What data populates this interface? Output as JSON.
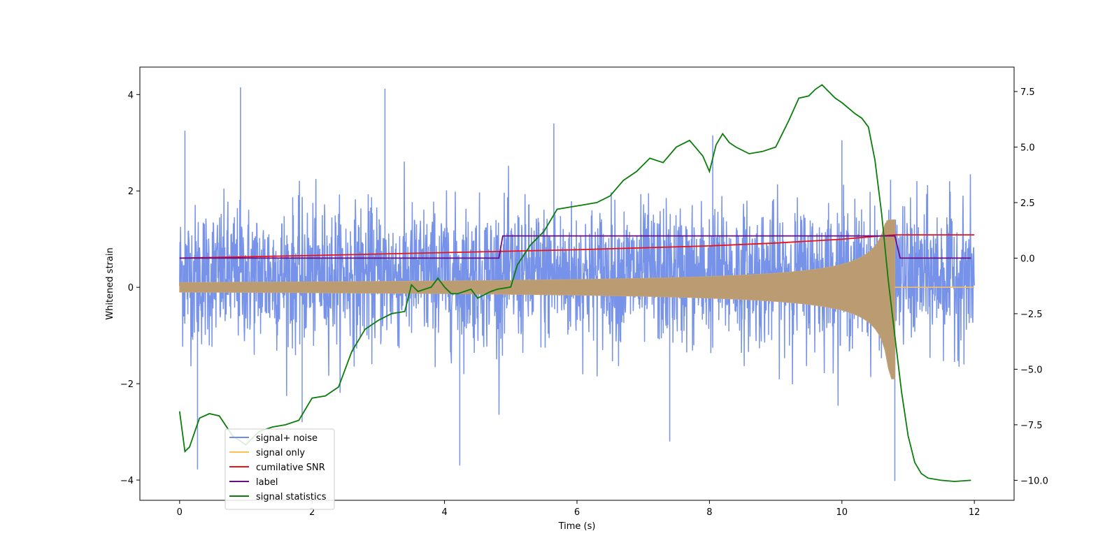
{
  "chart_data": {
    "type": "line",
    "title": "",
    "xlabel": "Time (s)",
    "ylabel": "Whitened strain",
    "y2label": "",
    "xlim": [
      -0.6,
      12.6
    ],
    "ylim": [
      -4.42,
      4.57
    ],
    "y2lim": [
      -10.9,
      8.6
    ],
    "x_ticks": [
      0,
      2,
      4,
      6,
      8,
      10,
      12
    ],
    "y_ticks": [
      -4,
      -2,
      0,
      2,
      4
    ],
    "y2_ticks": [
      -10.0,
      -7.5,
      -5.0,
      -2.5,
      0.0,
      2.5,
      5.0,
      7.5
    ],
    "x_tick_labels": [
      "0",
      "2",
      "4",
      "6",
      "8",
      "10",
      "12"
    ],
    "y_tick_labels": [
      "−4",
      "−2",
      "0",
      "2",
      "4"
    ],
    "y2_tick_labels": [
      "−10.0",
      "−7.5",
      "−5.0",
      "−2.5",
      "0.0",
      "2.5",
      "5.0",
      "7.5"
    ],
    "grid": false,
    "legend_position": "lower-left",
    "series": [
      {
        "name": "signal+ noise",
        "axis": "left",
        "color": "#6f8ce8",
        "kind": "noise-band",
        "t_start": 0,
        "t_end": 12,
        "typical_range": [
          -1.8,
          2.3
        ],
        "spikes": [
          [
            0.08,
            3.25
          ],
          [
            0.27,
            -3.78
          ],
          [
            0.92,
            4.15
          ],
          [
            1.85,
            -2.8
          ],
          [
            3.1,
            4.12
          ],
          [
            4.23,
            -3.7
          ],
          [
            5.65,
            3.4
          ],
          [
            7.4,
            -3.2
          ],
          [
            8.05,
            3.15
          ],
          [
            10.0,
            3.05
          ],
          [
            10.8,
            -4.02
          ]
        ]
      },
      {
        "name": "signal only",
        "axis": "left",
        "color": "#ffbe5c",
        "kind": "chirp-envelope",
        "t_start": 0,
        "t_merge": 10.8,
        "t_end": 12,
        "start_amplitude": 0.1,
        "peak_amplitude": [
          -1.9,
          1.4
        ]
      },
      {
        "name": "cumilative SNR",
        "axis": "right",
        "color": "#e8141a",
        "x": [
          0,
          2,
          4,
          6,
          8,
          9,
          10,
          10.5,
          10.8,
          12
        ],
        "values": [
          0.0,
          0.12,
          0.25,
          0.38,
          0.55,
          0.68,
          0.85,
          0.98,
          1.05,
          1.05
        ]
      },
      {
        "name": "label",
        "axis": "right",
        "color": "#6a0c84",
        "x": [
          0,
          4.82,
          4.88,
          10.8,
          10.88,
          11.95
        ],
        "values": [
          0,
          0,
          1,
          1,
          0,
          0
        ]
      },
      {
        "name": "signal statistics",
        "axis": "right",
        "color": "#0a7d0a",
        "x": [
          0,
          0.08,
          0.15,
          0.3,
          0.45,
          0.6,
          0.8,
          1.0,
          1.2,
          1.4,
          1.6,
          1.8,
          2.0,
          2.2,
          2.4,
          2.6,
          2.8,
          3.0,
          3.2,
          3.4,
          3.5,
          3.6,
          3.8,
          3.9,
          4.0,
          4.1,
          4.2,
          4.4,
          4.5,
          4.7,
          4.8,
          5.0,
          5.1,
          5.3,
          5.5,
          5.7,
          5.9,
          6.1,
          6.3,
          6.5,
          6.7,
          6.9,
          7.1,
          7.3,
          7.5,
          7.7,
          7.9,
          8.0,
          8.1,
          8.2,
          8.3,
          8.4,
          8.6,
          8.8,
          9.0,
          9.2,
          9.35,
          9.5,
          9.6,
          9.7,
          9.8,
          9.9,
          10.0,
          10.2,
          10.3,
          10.4,
          10.5,
          10.6,
          10.7,
          10.8,
          10.9,
          11.0,
          11.1,
          11.2,
          11.3,
          11.5,
          11.7,
          11.95
        ],
        "values": [
          -6.9,
          -8.7,
          -8.5,
          -7.2,
          -7.0,
          -7.1,
          -8.0,
          -8.4,
          -7.8,
          -7.6,
          -7.5,
          -7.3,
          -6.3,
          -6.2,
          -5.8,
          -4.2,
          -3.2,
          -2.8,
          -2.5,
          -2.4,
          -1.2,
          -1.5,
          -1.3,
          -0.9,
          -1.3,
          -1.6,
          -1.6,
          -1.4,
          -1.8,
          -1.5,
          -1.4,
          -1.3,
          -0.3,
          0.6,
          1.2,
          2.2,
          2.3,
          2.4,
          2.5,
          2.8,
          3.5,
          3.9,
          4.5,
          4.3,
          5.0,
          5.3,
          4.6,
          3.9,
          5.1,
          5.6,
          5.2,
          5.0,
          4.7,
          4.8,
          5.0,
          6.2,
          7.2,
          7.3,
          7.6,
          7.8,
          7.5,
          7.2,
          7.0,
          6.5,
          6.3,
          5.9,
          4.4,
          2.0,
          -1.0,
          -3.5,
          -6.0,
          -8.0,
          -9.2,
          -9.7,
          -9.9,
          -10.0,
          -10.05,
          -10.0
        ]
      }
    ]
  }
}
